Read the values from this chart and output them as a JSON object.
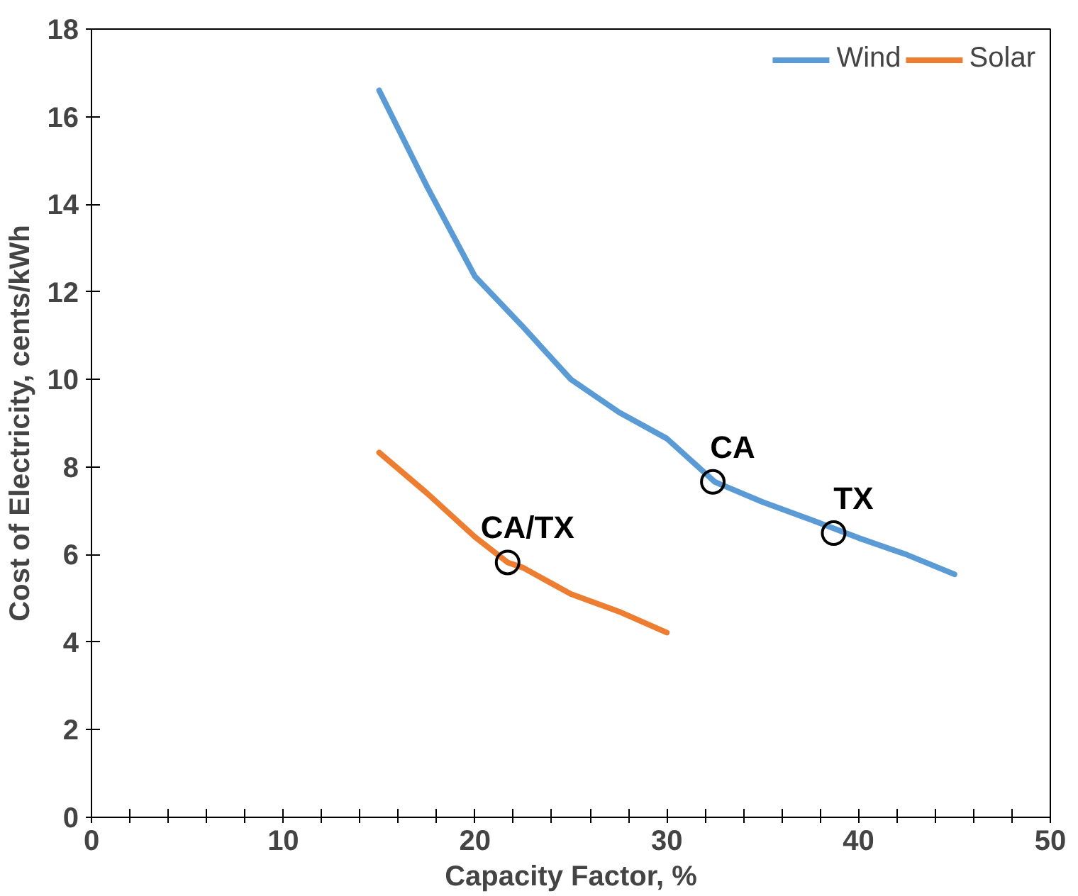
{
  "chart_data": {
    "type": "line",
    "xlabel": "Capacity Factor, %",
    "ylabel": "Cost of Electricity, cents/kWh",
    "xlim": [
      0,
      50
    ],
    "ylim": [
      0,
      18
    ],
    "xticks": [
      0,
      {
        "value": 2,
        "label": null
      },
      {
        "value": 4,
        "label": null
      },
      {
        "value": 6,
        "label": null
      },
      {
        "value": 8,
        "label": null
      },
      10,
      {
        "value": 12,
        "label": null
      },
      {
        "value": 14,
        "label": null
      },
      {
        "value": 16,
        "label": null
      },
      {
        "value": 18,
        "label": null
      },
      20,
      {
        "value": 22,
        "label": null
      },
      {
        "value": 24,
        "label": null
      },
      {
        "value": 26,
        "label": null
      },
      {
        "value": 28,
        "label": null
      },
      30,
      {
        "value": 32,
        "label": null
      },
      {
        "value": 34,
        "label": null
      },
      {
        "value": 36,
        "label": null
      },
      {
        "value": 38,
        "label": null
      },
      40,
      {
        "value": 42,
        "label": null
      },
      {
        "value": 44,
        "label": null
      },
      {
        "value": 46,
        "label": null
      },
      {
        "value": 48,
        "label": null
      },
      50
    ],
    "yticks": [
      0,
      2,
      4,
      6,
      8,
      10,
      12,
      14,
      16,
      18
    ],
    "grid": false,
    "legend": "top right",
    "line_style": "solid",
    "series": [
      {
        "name": "Wind",
        "color": "#5b9bd5",
        "x": [
          15,
          17.5,
          20,
          22.5,
          25,
          27.5,
          30,
          32.5,
          35,
          37.5,
          40,
          42.5,
          45
        ],
        "values": [
          16.6,
          14.4,
          12.35,
          11.2,
          10.0,
          9.25,
          8.65,
          7.66,
          7.2,
          6.8,
          6.38,
          6.0,
          5.55
        ]
      },
      {
        "name": "Solar",
        "color": "#ed7d31",
        "x": [
          15,
          17.5,
          20,
          21.7,
          22.5,
          25,
          27.5,
          30
        ],
        "values": [
          8.33,
          7.4,
          6.4,
          5.82,
          5.7,
          5.1,
          4.7,
          4.22
        ]
      },
      {
        "type": "scatter",
        "marker": "circle",
        "color": "#000000",
        "x": [
          32.4,
          38.7,
          21.7
        ],
        "values": [
          7.66,
          6.49,
          5.82
        ]
      }
    ],
    "annotations": [
      {
        "text": "CA",
        "x": 32.4,
        "y": 7.66
      },
      {
        "text": "TX",
        "x": 38.7,
        "y": 6.49
      },
      {
        "text": "CA/TX",
        "x": 21.7,
        "y": 5.82
      }
    ]
  }
}
